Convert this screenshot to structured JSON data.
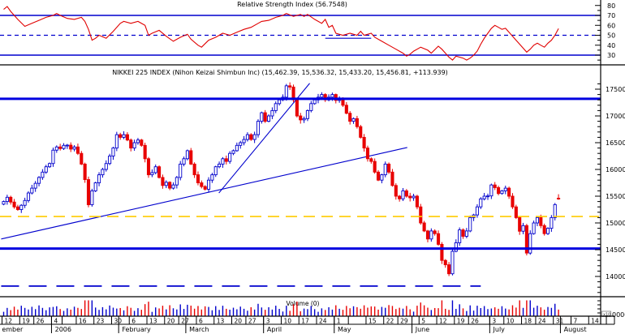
{
  "colors": {
    "background": "#ffffff",
    "axis_black": "#000000",
    "blue_line": "#0000cd",
    "thick_blue": "#0000e0",
    "rsi_red": "#e00000",
    "candle_up_stroke": "#0000cc",
    "candle_up_fill": "#ffffff",
    "candle_down": "#e80000",
    "yellow_dashed": "#ffcc00",
    "volume_up": "#0000cc",
    "volume_down": "#e80000"
  },
  "chart_data": [
    {
      "type": "line",
      "panel": "rsi",
      "title": "Relative Strength Index (56.7548)",
      "current_value": 56.7548,
      "ylim": [
        22,
        84
      ],
      "axis_tick_labels": [
        "80",
        "70",
        "60",
        "50",
        "40",
        "30"
      ],
      "axis_tick_values": [
        80,
        70,
        60,
        50,
        40,
        30
      ],
      "overbought_line": 70,
      "midline_dashed": 50,
      "oversold_line": 30,
      "trend_segment": {
        "d1": 91,
        "v1": 47,
        "d2": 104,
        "v2": 47
      },
      "series": [
        [
          0,
          76
        ],
        [
          1,
          79
        ],
        [
          2,
          74
        ],
        [
          4,
          66
        ],
        [
          6,
          59
        ],
        [
          8,
          62
        ],
        [
          10,
          65
        ],
        [
          12,
          68
        ],
        [
          14,
          70
        ],
        [
          15,
          72
        ],
        [
          16,
          70
        ],
        [
          18,
          67
        ],
        [
          20,
          66
        ],
        [
          22,
          68
        ],
        [
          23,
          64
        ],
        [
          24,
          56
        ],
        [
          25,
          45
        ],
        [
          26,
          47
        ],
        [
          27,
          50
        ],
        [
          29,
          47
        ],
        [
          31,
          54
        ],
        [
          33,
          62
        ],
        [
          34,
          64
        ],
        [
          36,
          62
        ],
        [
          38,
          64
        ],
        [
          40,
          60
        ],
        [
          41,
          50
        ],
        [
          42,
          52
        ],
        [
          44,
          55
        ],
        [
          46,
          49
        ],
        [
          48,
          44
        ],
        [
          50,
          48
        ],
        [
          52,
          51
        ],
        [
          53,
          46
        ],
        [
          55,
          40
        ],
        [
          56,
          38
        ],
        [
          58,
          45
        ],
        [
          60,
          48
        ],
        [
          62,
          52
        ],
        [
          64,
          50
        ],
        [
          66,
          53
        ],
        [
          68,
          56
        ],
        [
          70,
          58
        ],
        [
          72,
          62
        ],
        [
          73,
          64
        ],
        [
          75,
          65
        ],
        [
          77,
          68
        ],
        [
          79,
          70
        ],
        [
          80,
          72
        ],
        [
          82,
          69
        ],
        [
          84,
          71
        ],
        [
          85,
          69
        ],
        [
          86,
          71
        ],
        [
          88,
          66
        ],
        [
          90,
          62
        ],
        [
          91,
          66
        ],
        [
          92,
          58
        ],
        [
          93,
          60
        ],
        [
          94,
          52
        ],
        [
          96,
          50
        ],
        [
          98,
          52
        ],
        [
          100,
          50
        ],
        [
          101,
          54
        ],
        [
          102,
          50
        ],
        [
          104,
          52
        ],
        [
          105,
          48
        ],
        [
          107,
          44
        ],
        [
          109,
          40
        ],
        [
          111,
          36
        ],
        [
          113,
          32
        ],
        [
          114,
          29
        ],
        [
          115,
          31
        ],
        [
          116,
          34
        ],
        [
          118,
          38
        ],
        [
          120,
          35
        ],
        [
          121,
          32
        ],
        [
          123,
          39
        ],
        [
          124,
          36
        ],
        [
          126,
          28
        ],
        [
          127,
          25
        ],
        [
          128,
          29
        ],
        [
          130,
          27
        ],
        [
          131,
          25
        ],
        [
          132,
          27
        ],
        [
          133,
          30
        ],
        [
          134,
          34
        ],
        [
          135,
          41
        ],
        [
          136,
          47
        ],
        [
          137,
          52
        ],
        [
          138,
          57
        ],
        [
          139,
          60
        ],
        [
          140,
          58
        ],
        [
          141,
          56
        ],
        [
          142,
          57
        ],
        [
          143,
          53
        ],
        [
          144,
          49
        ],
        [
          145,
          45
        ],
        [
          146,
          41
        ],
        [
          147,
          37
        ],
        [
          148,
          33
        ],
        [
          149,
          36
        ],
        [
          150,
          40
        ],
        [
          151,
          42
        ],
        [
          152,
          40
        ],
        [
          153,
          38
        ],
        [
          154,
          42
        ],
        [
          155,
          45
        ],
        [
          156,
          50
        ],
        [
          157,
          56.75
        ]
      ]
    },
    {
      "type": "candlestick",
      "panel": "price",
      "title": "NIKKEI 225 INDEX (Nihon Keizai Shimbun Inc) (15,462.39, 15,536.32, 15,433.20, 15,456.81, +113.939)",
      "quote": {
        "open": 15462.39,
        "high": 15536.32,
        "low": 15433.2,
        "close": 15456.81,
        "change": 113.939
      },
      "ylim": [
        13650,
        17720
      ],
      "axis_tick_labels": [
        "17500",
        "17000",
        "16500",
        "16000",
        "15500",
        "15000",
        "14500",
        "14000"
      ],
      "axis_tick_values": [
        17500,
        17000,
        16500,
        16000,
        15500,
        15000,
        14500,
        14000
      ],
      "resistance_line": 17320,
      "support_line": 14520,
      "yellow_dashed_line": 15120,
      "lower_dashed_line": {
        "value": 13820,
        "d_start": -0.7,
        "d_end": 135
      },
      "trendlines": [
        {
          "name": "long-uptrend",
          "d1": -0.7,
          "v1": 14700,
          "d2": 114.2,
          "v2": 16410
        },
        {
          "name": "steep-uptrend",
          "d1": 60.9,
          "v1": 15560,
          "d2": 86.6,
          "v2": 17610
        }
      ],
      "closes": [
        15400,
        15480,
        15390,
        15300,
        15250,
        15330,
        15420,
        15560,
        15650,
        15740,
        15850,
        15950,
        16050,
        16110,
        16360,
        16420,
        16390,
        16450,
        16454,
        16380,
        16420,
        16300,
        16100,
        15810,
        15340,
        15600,
        15750,
        15900,
        16000,
        16110,
        16250,
        16400,
        16650,
        16600,
        16650,
        16550,
        16400,
        16500,
        16550,
        16450,
        16200,
        15900,
        15940,
        16050,
        15850,
        15700,
        15760,
        15650,
        15710,
        15850,
        16100,
        16200,
        16350,
        16100,
        15900,
        15750,
        15680,
        15630,
        15800,
        15900,
        16050,
        16100,
        16200,
        16150,
        16300,
        16350,
        16450,
        16500,
        16560,
        16650,
        16560,
        16650,
        16900,
        17060,
        16900,
        17000,
        17100,
        17230,
        17300,
        17350,
        17563,
        17540,
        17300,
        17000,
        16926,
        16950,
        17100,
        17230,
        17300,
        17350,
        17400,
        17300,
        17350,
        17400,
        17290,
        17320,
        17200,
        17050,
        16900,
        16950,
        16800,
        16600,
        16400,
        16200,
        16150,
        15950,
        15800,
        15900,
        16100,
        15950,
        15700,
        15500,
        15450,
        15600,
        15500,
        15470,
        15500,
        15300,
        15000,
        14850,
        14700,
        14850,
        14800,
        14600,
        14300,
        14218,
        14050,
        14470,
        14630,
        14870,
        14750,
        14850,
        15100,
        15150,
        15300,
        15450,
        15500,
        15505,
        15710,
        15660,
        15550,
        15600,
        15650,
        15500,
        15300,
        15100,
        14845,
        14950,
        14437,
        14800,
        15000,
        15100,
        14950,
        14800,
        14900,
        15100,
        15343,
        15456.81
      ],
      "last_candle": {
        "open": 15462.39,
        "high": 15536.32,
        "low": 15433.2,
        "close": 15456.81
      }
    },
    {
      "type": "bar",
      "panel": "volume",
      "title": "Volume (0)",
      "scale_multiplier_label": "x10",
      "scale_tick_label": "0000"
    }
  ],
  "date_axis": {
    "week_ticks": [
      {
        "d": 0,
        "label": "12"
      },
      {
        "d": 5,
        "label": "19"
      },
      {
        "d": 9,
        "label": "26"
      },
      {
        "d": 14,
        "label": "4"
      },
      {
        "d": 17,
        "label": ""
      },
      {
        "d": 21,
        "label": "16"
      },
      {
        "d": 26,
        "label": "23"
      },
      {
        "d": 31,
        "label": "30"
      },
      {
        "d": 36,
        "label": "6"
      },
      {
        "d": 41,
        "label": "13"
      },
      {
        "d": 46,
        "label": "20"
      },
      {
        "d": 50,
        "label": "27"
      },
      {
        "d": 55,
        "label": "6"
      },
      {
        "d": 60,
        "label": "13"
      },
      {
        "d": 65,
        "label": "20"
      },
      {
        "d": 69,
        "label": "27"
      },
      {
        "d": 74,
        "label": "3"
      },
      {
        "d": 79,
        "label": "10"
      },
      {
        "d": 84,
        "label": "17"
      },
      {
        "d": 89,
        "label": "24"
      },
      {
        "d": 94,
        "label": "1"
      },
      {
        "d": 98,
        "label": ""
      },
      {
        "d": 103,
        "label": "15"
      },
      {
        "d": 108,
        "label": "22"
      },
      {
        "d": 112,
        "label": "29"
      },
      {
        "d": 118,
        "label": "5"
      },
      {
        "d": 123,
        "label": "12"
      },
      {
        "d": 128,
        "label": "19"
      },
      {
        "d": 132,
        "label": "26"
      },
      {
        "d": 138,
        "label": "3"
      },
      {
        "d": 142,
        "label": "10"
      },
      {
        "d": 147,
        "label": "18"
      },
      {
        "d": 151,
        "label": "24"
      },
      {
        "d": 156,
        "label": "31"
      },
      {
        "d": 161,
        "label": "7"
      },
      {
        "d": 166,
        "label": "14"
      },
      {
        "d": 171,
        "label": ""
      }
    ],
    "month_boundaries_d": [
      14,
      33,
      52,
      74,
      94,
      116,
      138,
      158
    ],
    "month_labels": [
      {
        "d": -0.5,
        "label": "ember"
      },
      {
        "d": 14.5,
        "label": "2006"
      },
      {
        "d": 33.5,
        "label": "February"
      },
      {
        "d": 52.5,
        "label": "March"
      },
      {
        "d": 74.5,
        "label": "April"
      },
      {
        "d": 94.5,
        "label": "May"
      },
      {
        "d": 116.5,
        "label": "June"
      },
      {
        "d": 138.5,
        "label": "July"
      },
      {
        "d": 158.5,
        "label": "August"
      }
    ]
  }
}
